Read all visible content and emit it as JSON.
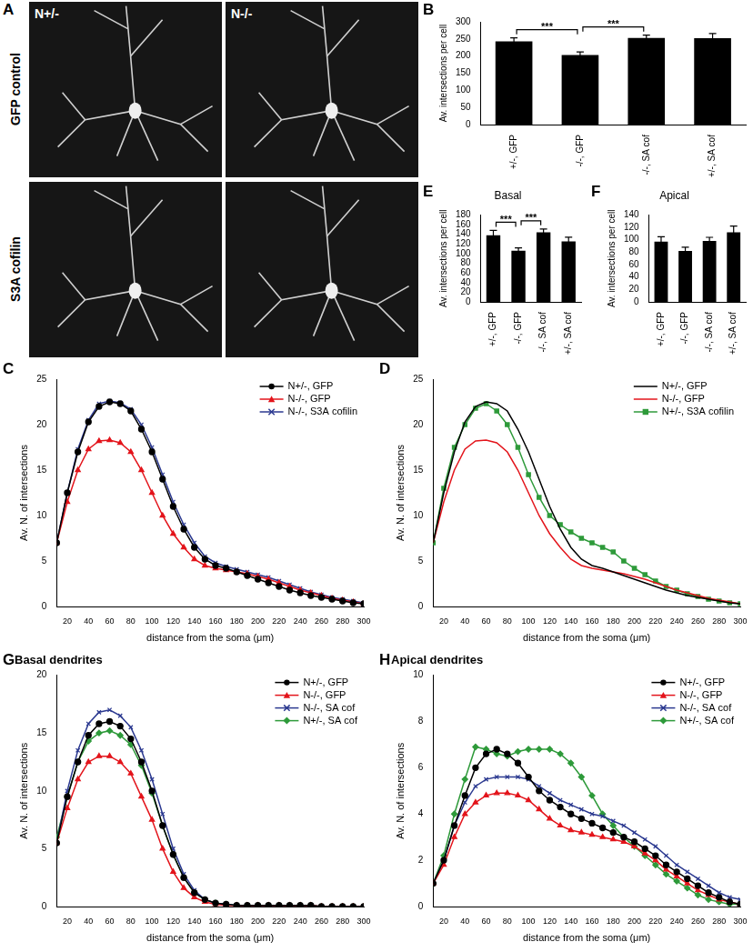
{
  "image_panel": {
    "panel": "A",
    "columns": [
      "N+/-",
      "N-/-"
    ],
    "rows": [
      "GFP control",
      "S3A cofilin"
    ]
  },
  "chart_data": [
    {
      "panel": "B",
      "type": "bar",
      "y_label": "Av. intersections per cell",
      "categories": [
        "+/-, GFP",
        "-/-, GFP",
        "-/-, SA cof",
        "+/-, SA cof"
      ],
      "values": [
        243,
        203,
        253,
        252
      ],
      "errors": [
        10,
        9,
        8,
        14
      ],
      "color": "#000000",
      "ylim": [
        0,
        300
      ],
      "yticks": [
        0,
        50,
        100,
        150,
        200,
        250,
        300
      ],
      "grid": false,
      "annotations": [
        {
          "text": "***",
          "from": 0,
          "to": 1
        },
        {
          "text": "***",
          "from": 1,
          "to": 2
        }
      ]
    },
    {
      "panel": "E",
      "type": "bar",
      "title": "Basal",
      "y_label": "Av. intersections per cell",
      "categories": [
        "+/-, GFP",
        "-/-, GFP",
        "-/-, SA cof",
        "+/-, SA cof"
      ],
      "values": [
        138,
        106,
        144,
        125
      ],
      "errors": [
        10,
        6,
        7,
        9
      ],
      "color": "#000000",
      "ylim": [
        0,
        180
      ],
      "yticks": [
        0,
        20,
        40,
        60,
        80,
        100,
        120,
        140,
        160,
        180
      ],
      "grid": false,
      "annotations": [
        {
          "text": "***",
          "from": 0,
          "to": 1
        },
        {
          "text": "***",
          "from": 1,
          "to": 2
        }
      ]
    },
    {
      "panel": "F",
      "type": "bar",
      "title": "Apical",
      "y_label": "Av. intersections per cell",
      "categories": [
        "+/-, GFP",
        "-/-, GFP",
        "-/-, SA cof",
        "+/-, SA cof"
      ],
      "values": [
        97,
        82,
        98,
        112
      ],
      "errors": [
        8,
        6,
        6,
        10
      ],
      "color": "#000000",
      "ylim": [
        0,
        140
      ],
      "yticks": [
        0,
        20,
        40,
        60,
        80,
        100,
        120,
        140
      ],
      "grid": false
    },
    {
      "panel": "C",
      "type": "line",
      "x_label": "distance from the soma (μm)",
      "y_label": "Av. N. of intersections",
      "x": [
        10,
        20,
        30,
        40,
        50,
        60,
        70,
        80,
        90,
        100,
        110,
        120,
        130,
        140,
        150,
        160,
        170,
        180,
        190,
        200,
        210,
        220,
        230,
        240,
        250,
        260,
        270,
        280,
        290,
        300
      ],
      "xlim": [
        10,
        300
      ],
      "xticks": [
        20,
        40,
        60,
        80,
        100,
        120,
        140,
        160,
        180,
        200,
        220,
        240,
        260,
        280,
        300
      ],
      "ylim": [
        0,
        25
      ],
      "yticks": [
        0,
        5,
        10,
        15,
        20,
        25
      ],
      "grid": false,
      "legend": "upper right",
      "series": [
        {
          "name": "N+/-, GFP",
          "color": "#000000",
          "marker": "circle",
          "values": [
            7,
            12.5,
            17,
            20.3,
            22,
            22.5,
            22.3,
            21.5,
            19.5,
            17,
            14,
            11,
            8.5,
            6.5,
            5.2,
            4.5,
            4.2,
            3.8,
            3.4,
            3.0,
            2.6,
            2.2,
            1.8,
            1.5,
            1.2,
            1.0,
            0.8,
            0.6,
            0.4,
            0.3
          ]
        },
        {
          "name": "N-/-, GFP",
          "color": "#e3141b",
          "marker": "triangle",
          "values": [
            7,
            11.5,
            15,
            17.3,
            18.2,
            18.3,
            18,
            17,
            15,
            12.5,
            10,
            8,
            6.5,
            5.2,
            4.5,
            4.2,
            4.0,
            3.8,
            3.6,
            3.3,
            3.0,
            2.6,
            2.2,
            1.8,
            1.5,
            1.2,
            0.9,
            0.7,
            0.5,
            0.3
          ]
        },
        {
          "name": "N-/-, S3A cofilin",
          "color": "#2b3990",
          "marker": "cross",
          "values": [
            7,
            12.5,
            17.3,
            20.5,
            22.3,
            22.6,
            22.4,
            21.7,
            20,
            17.5,
            14.5,
            11.5,
            9,
            7,
            5.5,
            4.8,
            4.4,
            4.1,
            3.8,
            3.5,
            3.2,
            2.8,
            2.4,
            2.0,
            1.6,
            1.3,
            1.0,
            0.8,
            0.6,
            0.4
          ]
        }
      ]
    },
    {
      "panel": "D",
      "type": "line",
      "x_label": "distance from the soma (μm)",
      "y_label": "Av. N. of intersections",
      "x": [
        10,
        20,
        30,
        40,
        50,
        60,
        70,
        80,
        90,
        100,
        110,
        120,
        130,
        140,
        150,
        160,
        170,
        180,
        190,
        200,
        210,
        220,
        230,
        240,
        250,
        260,
        270,
        280,
        290,
        300
      ],
      "xlim": [
        10,
        300
      ],
      "xticks": [
        20,
        40,
        60,
        80,
        100,
        120,
        140,
        160,
        180,
        200,
        220,
        240,
        260,
        280,
        300
      ],
      "ylim": [
        0,
        25
      ],
      "yticks": [
        0,
        5,
        10,
        15,
        20,
        25
      ],
      "grid": false,
      "legend": "upper right",
      "series": [
        {
          "name": "N+/-, GFP",
          "color": "#000000",
          "marker": "none",
          "values": [
            7,
            12.5,
            17,
            20.3,
            22,
            22.5,
            22.3,
            21.5,
            19.5,
            17,
            14,
            11,
            8.5,
            6.5,
            5.2,
            4.5,
            4.2,
            3.8,
            3.4,
            3.0,
            2.6,
            2.2,
            1.8,
            1.5,
            1.2,
            1.0,
            0.8,
            0.6,
            0.4,
            0.3
          ]
        },
        {
          "name": "N-/-, GFP",
          "color": "#e3141b",
          "marker": "none",
          "values": [
            7,
            11.5,
            15,
            17.3,
            18.2,
            18.3,
            18,
            17,
            15,
            12.5,
            10,
            8,
            6.5,
            5.2,
            4.5,
            4.2,
            4.0,
            3.8,
            3.6,
            3.3,
            3.0,
            2.6,
            2.2,
            1.8,
            1.5,
            1.2,
            0.9,
            0.7,
            0.5,
            0.3
          ]
        },
        {
          "name": "N+/-, S3A cofilin",
          "color": "#2e9a3a",
          "marker": "square",
          "values": [
            7,
            13,
            17.5,
            20,
            21.8,
            22.3,
            21.5,
            20,
            17.5,
            14.5,
            12,
            10,
            9,
            8.2,
            7.5,
            7,
            6.5,
            6,
            5,
            4.2,
            3.5,
            2.8,
            2.2,
            1.8,
            1.4,
            1.1,
            0.8,
            0.6,
            0.4,
            0.3
          ]
        }
      ]
    },
    {
      "panel": "G",
      "type": "line",
      "title": "Basal dendrites",
      "x_label": "distance from the soma (μm)",
      "y_label": "Av. N. of intersections",
      "x": [
        10,
        20,
        30,
        40,
        50,
        60,
        70,
        80,
        90,
        100,
        110,
        120,
        130,
        140,
        150,
        160,
        170,
        180,
        190,
        200,
        210,
        220,
        230,
        240,
        250,
        260,
        270,
        280,
        290,
        300
      ],
      "xlim": [
        10,
        300
      ],
      "xticks": [
        20,
        40,
        60,
        80,
        100,
        120,
        140,
        160,
        180,
        200,
        220,
        240,
        260,
        280,
        300
      ],
      "ylim": [
        0,
        20
      ],
      "yticks": [
        0,
        5,
        10,
        15,
        20
      ],
      "grid": false,
      "legend": "upper right",
      "series": [
        {
          "name": "N+/-, GFP",
          "color": "#000000",
          "marker": "circle",
          "values": [
            5.5,
            9.5,
            12.5,
            14.8,
            15.8,
            16,
            15.6,
            14.5,
            12.5,
            10,
            7,
            4.5,
            2.5,
            1.2,
            0.6,
            0.3,
            0.2,
            0.1,
            0.1,
            0.1,
            0.1,
            0.1,
            0.1,
            0.1,
            0.1,
            0,
            0,
            0,
            0,
            0
          ]
        },
        {
          "name": "N-/-, GFP",
          "color": "#e3141b",
          "marker": "triangle",
          "values": [
            5.5,
            8.5,
            11,
            12.5,
            13,
            13,
            12.5,
            11.5,
            9.5,
            7.5,
            5,
            3,
            1.6,
            0.8,
            0.4,
            0.2,
            0.1,
            0.1,
            0.1,
            0.1,
            0.1,
            0.1,
            0.1,
            0.1,
            0.1,
            0,
            0,
            0,
            0,
            0
          ]
        },
        {
          "name": "N-/-, SA cof",
          "color": "#2b3990",
          "marker": "cross",
          "values": [
            5.5,
            10,
            13.5,
            15.8,
            16.8,
            17,
            16.5,
            15.5,
            13.5,
            11,
            8,
            5,
            2.8,
            1.4,
            0.6,
            0.3,
            0.2,
            0.1,
            0.1,
            0.1,
            0.1,
            0.1,
            0.1,
            0.1,
            0.1,
            0,
            0,
            0,
            0,
            0
          ]
        },
        {
          "name": "N+/-, SA cof",
          "color": "#2e9a3a",
          "marker": "diamond",
          "values": [
            6,
            9.5,
            12.5,
            14.3,
            15,
            15.2,
            14.8,
            14,
            12.2,
            9.8,
            7,
            4.5,
            2.5,
            1.2,
            0.6,
            0.3,
            0.2,
            0.1,
            0.1,
            0.1,
            0.1,
            0.1,
            0.1,
            0.1,
            0.1,
            0,
            0,
            0,
            0,
            0
          ]
        }
      ]
    },
    {
      "panel": "H",
      "type": "line",
      "title": "Apical dendrites",
      "x_label": "distance from the soma (μm)",
      "y_label": "Av. N. of intersections",
      "x": [
        10,
        20,
        30,
        40,
        50,
        60,
        70,
        80,
        90,
        100,
        110,
        120,
        130,
        140,
        150,
        160,
        170,
        180,
        190,
        200,
        210,
        220,
        230,
        240,
        250,
        260,
        270,
        280,
        290,
        300
      ],
      "xlim": [
        10,
        300
      ],
      "xticks": [
        20,
        40,
        60,
        80,
        100,
        120,
        140,
        160,
        180,
        200,
        220,
        240,
        260,
        280,
        300
      ],
      "ylim": [
        0,
        10
      ],
      "yticks": [
        0,
        2,
        4,
        6,
        8,
        10
      ],
      "grid": false,
      "legend": "upper right",
      "series": [
        {
          "name": "N+/-, GFP",
          "color": "#000000",
          "marker": "circle",
          "values": [
            1,
            2,
            3.5,
            4.8,
            6,
            6.6,
            6.8,
            6.6,
            6.2,
            5.6,
            5,
            4.6,
            4.3,
            4.0,
            3.8,
            3.6,
            3.4,
            3.2,
            3.0,
            2.8,
            2.5,
            2.2,
            1.8,
            1.5,
            1.2,
            0.9,
            0.6,
            0.4,
            0.2,
            0.1
          ]
        },
        {
          "name": "N-/-, GFP",
          "color": "#e3141b",
          "marker": "triangle",
          "values": [
            1,
            1.8,
            3,
            4,
            4.5,
            4.8,
            4.9,
            4.9,
            4.8,
            4.6,
            4.2,
            3.8,
            3.5,
            3.3,
            3.2,
            3.1,
            3.0,
            2.9,
            2.8,
            2.6,
            2.3,
            2.0,
            1.6,
            1.3,
            1.0,
            0.7,
            0.5,
            0.3,
            0.2,
            0.1
          ]
        },
        {
          "name": "N-/-, SA cof",
          "color": "#2b3990",
          "marker": "cross",
          "values": [
            1,
            2,
            3.5,
            4.5,
            5.2,
            5.5,
            5.6,
            5.6,
            5.6,
            5.5,
            5.2,
            4.9,
            4.6,
            4.4,
            4.2,
            4.0,
            3.9,
            3.7,
            3.5,
            3.2,
            2.9,
            2.6,
            2.2,
            1.8,
            1.5,
            1.2,
            0.9,
            0.6,
            0.4,
            0.3
          ]
        },
        {
          "name": "N+/-, SA cof",
          "color": "#2e9a3a",
          "marker": "diamond",
          "values": [
            1,
            2.2,
            4,
            5.5,
            6.9,
            6.8,
            6.6,
            6.5,
            6.7,
            6.8,
            6.8,
            6.8,
            6.6,
            6.2,
            5.6,
            4.8,
            4.0,
            3.5,
            3.0,
            2.6,
            2.2,
            1.8,
            1.4,
            1.1,
            0.8,
            0.5,
            0.3,
            0.2,
            0.1,
            0.1
          ]
        }
      ]
    }
  ]
}
